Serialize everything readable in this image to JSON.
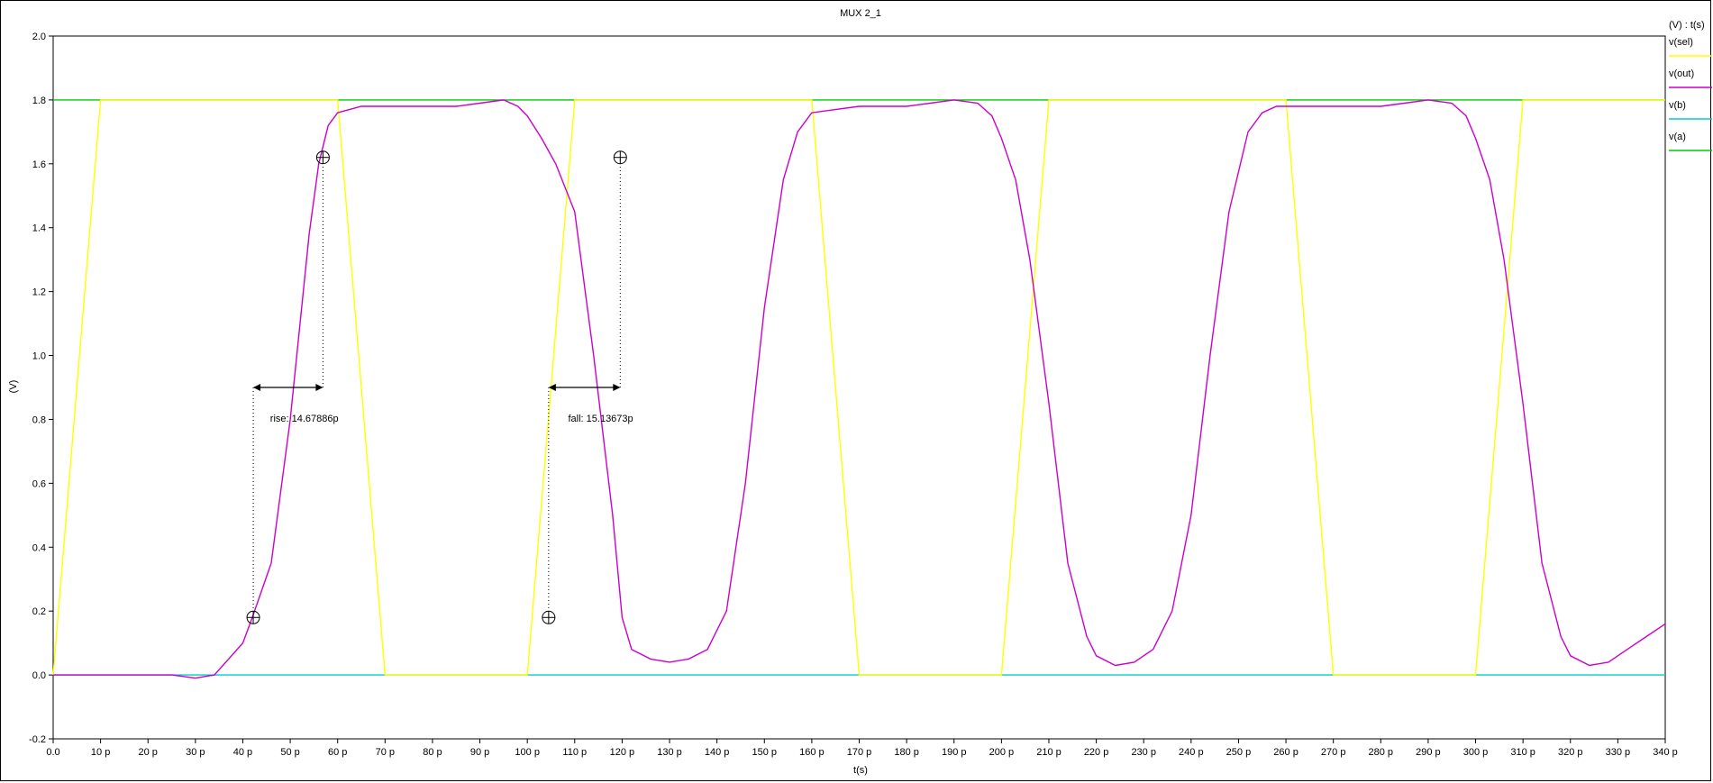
{
  "chart_data": {
    "type": "line",
    "title": "MUX 2_1",
    "xlabel": "t(s)",
    "ylabel": "(V)",
    "legend_header": "(V) : t(s)",
    "xlim": [
      0,
      340
    ],
    "ylim": [
      -0.2,
      2.0
    ],
    "x_ticks": [
      {
        "value": 0,
        "label": "0.0"
      },
      {
        "value": 10,
        "label": "10 p"
      },
      {
        "value": 20,
        "label": "20 p"
      },
      {
        "value": 30,
        "label": "30 p"
      },
      {
        "value": 40,
        "label": "40 p"
      },
      {
        "value": 50,
        "label": "50 p"
      },
      {
        "value": 60,
        "label": "60 p"
      },
      {
        "value": 70,
        "label": "70 p"
      },
      {
        "value": 80,
        "label": "80 p"
      },
      {
        "value": 90,
        "label": "90 p"
      },
      {
        "value": 100,
        "label": "100 p"
      },
      {
        "value": 110,
        "label": "110 p"
      },
      {
        "value": 120,
        "label": "120 p"
      },
      {
        "value": 130,
        "label": "130 p"
      },
      {
        "value": 140,
        "label": "140 p"
      },
      {
        "value": 150,
        "label": "150 p"
      },
      {
        "value": 160,
        "label": "160 p"
      },
      {
        "value": 170,
        "label": "170 p"
      },
      {
        "value": 180,
        "label": "180 p"
      },
      {
        "value": 190,
        "label": "190 p"
      },
      {
        "value": 200,
        "label": "200 p"
      },
      {
        "value": 210,
        "label": "210 p"
      },
      {
        "value": 220,
        "label": "220 p"
      },
      {
        "value": 230,
        "label": "230 p"
      },
      {
        "value": 240,
        "label": "240 p"
      },
      {
        "value": 250,
        "label": "250 p"
      },
      {
        "value": 260,
        "label": "260 p"
      },
      {
        "value": 270,
        "label": "270 p"
      },
      {
        "value": 280,
        "label": "280 p"
      },
      {
        "value": 290,
        "label": "290 p"
      },
      {
        "value": 300,
        "label": "300 p"
      },
      {
        "value": 310,
        "label": "310 p"
      },
      {
        "value": 320,
        "label": "320 p"
      },
      {
        "value": 330,
        "label": "330 p"
      },
      {
        "value": 340,
        "label": "340 p"
      }
    ],
    "y_ticks": [
      {
        "value": 2.0,
        "label": "2.0"
      },
      {
        "value": 1.8,
        "label": "1.8"
      },
      {
        "value": 1.6,
        "label": "1.6"
      },
      {
        "value": 1.4,
        "label": "1.4"
      },
      {
        "value": 1.2,
        "label": "1.2"
      },
      {
        "value": 1.0,
        "label": "1.0"
      },
      {
        "value": 0.8,
        "label": "0.8"
      },
      {
        "value": 0.6,
        "label": "0.6"
      },
      {
        "value": 0.4,
        "label": "0.4"
      },
      {
        "value": 0.2,
        "label": "0.2"
      },
      {
        "value": 0.0,
        "label": "0.0"
      },
      {
        "value": -0.2,
        "label": "-0.2"
      }
    ],
    "series": [
      {
        "name": "v(sel)",
        "color": "#ffff00",
        "x": [
          0,
          10,
          60,
          70,
          100,
          110,
          160,
          170,
          200,
          210,
          260,
          270,
          300,
          310,
          340
        ],
        "y": [
          0,
          1.8,
          1.8,
          0,
          0,
          1.8,
          1.8,
          0,
          0,
          1.8,
          1.8,
          0,
          0,
          1.8,
          1.8
        ]
      },
      {
        "name": "v(out)",
        "color": "#cc00cc",
        "x": [
          0,
          25,
          30,
          34,
          40,
          42,
          46,
          50,
          54,
          56,
          58,
          60,
          65,
          80,
          85,
          90,
          95,
          98,
          100,
          103,
          106,
          110,
          114,
          118,
          120,
          122,
          126,
          130,
          134,
          138,
          142,
          146,
          150,
          154,
          157,
          160,
          170,
          180,
          185,
          190,
          195,
          198,
          200,
          203,
          206,
          210,
          214,
          218,
          220,
          224,
          228,
          232,
          236,
          240,
          244,
          248,
          252,
          255,
          258,
          260,
          270,
          280,
          285,
          290,
          295,
          298,
          300,
          303,
          306,
          310,
          314,
          318,
          320,
          324,
          328,
          332,
          336,
          340
        ],
        "y": [
          0.0,
          0.0,
          -0.01,
          0.0,
          0.1,
          0.18,
          0.35,
          0.8,
          1.38,
          1.6,
          1.72,
          1.76,
          1.78,
          1.78,
          1.78,
          1.79,
          1.8,
          1.78,
          1.75,
          1.68,
          1.6,
          1.45,
          1.0,
          0.5,
          0.18,
          0.08,
          0.05,
          0.04,
          0.05,
          0.08,
          0.2,
          0.6,
          1.15,
          1.55,
          1.7,
          1.76,
          1.78,
          1.78,
          1.79,
          1.8,
          1.79,
          1.75,
          1.68,
          1.55,
          1.3,
          0.85,
          0.35,
          0.12,
          0.06,
          0.03,
          0.04,
          0.08,
          0.2,
          0.5,
          1.0,
          1.45,
          1.7,
          1.76,
          1.78,
          1.78,
          1.78,
          1.78,
          1.79,
          1.8,
          1.79,
          1.75,
          1.68,
          1.55,
          1.3,
          0.85,
          0.35,
          0.12,
          0.06,
          0.03,
          0.04,
          0.08,
          0.12,
          0.16
        ]
      },
      {
        "name": "v(b)",
        "color": "#00cccc",
        "x": [
          0,
          340
        ],
        "y": [
          0,
          0
        ]
      },
      {
        "name": "v(a)",
        "color": "#00cc00",
        "x": [
          0,
          340
        ],
        "y": [
          1.8,
          1.8
        ]
      }
    ],
    "annotations": [
      {
        "label": "rise: 14.67886p",
        "x1": 42.2,
        "x2": 56.9,
        "y_arrow": 0.9,
        "y_low": 0.18,
        "y_high": 1.62
      },
      {
        "label": "fall: 15.13673p",
        "x1": 104.5,
        "x2": 119.6,
        "y_arrow": 0.9,
        "y_low": 0.18,
        "y_high": 1.62
      }
    ]
  }
}
